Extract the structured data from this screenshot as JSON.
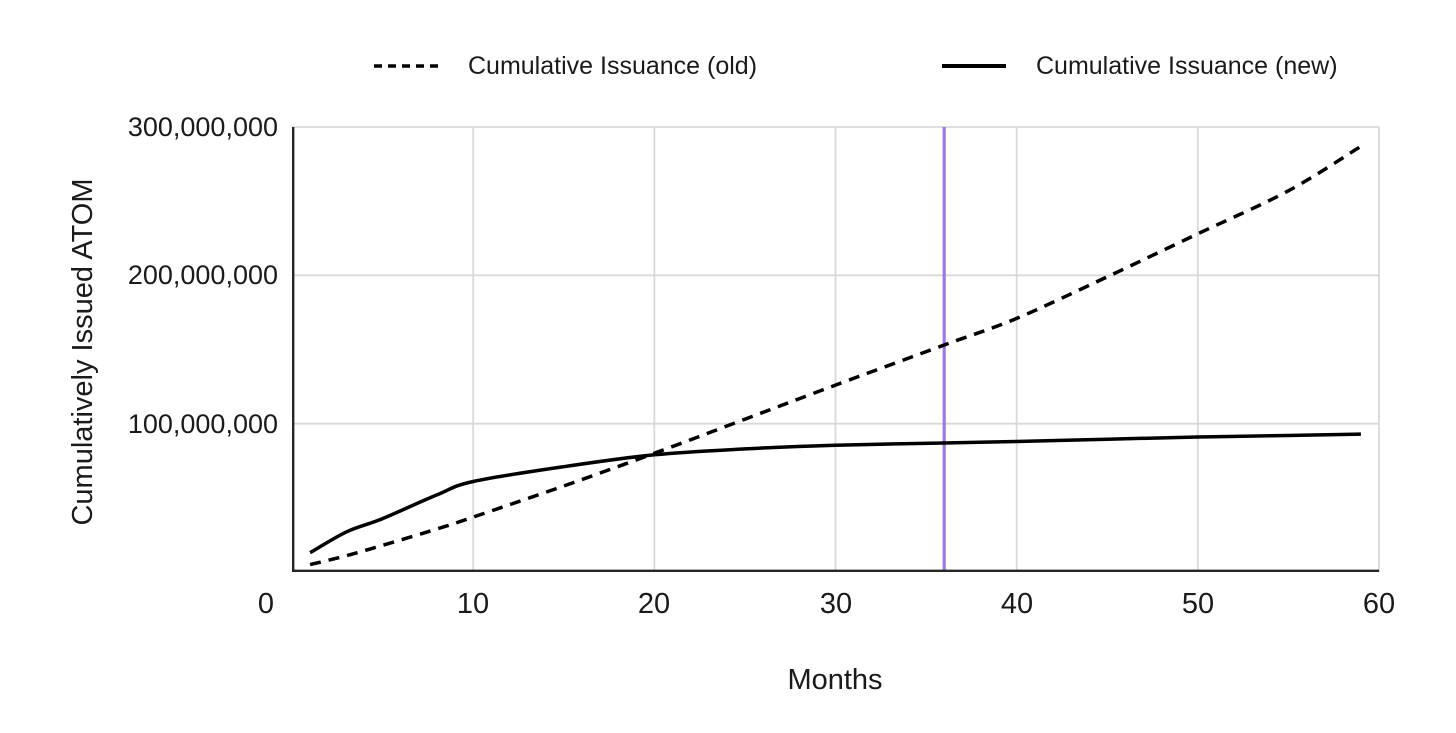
{
  "legend": {
    "items": [
      {
        "label": "Cumulative Issuance (old)",
        "line_style": "dashed",
        "color": "#000000"
      },
      {
        "label": "Cumulative Issuance (new)",
        "line_style": "solid",
        "color": "#000000"
      }
    ]
  },
  "axes": {
    "x_title": "Months",
    "y_title": "Cumulatively Issued ATOM",
    "x_tick_labels": [
      "0",
      "10",
      "20",
      "30",
      "40",
      "50",
      "60"
    ],
    "y_tick_labels": [
      "100,000,000",
      "200,000,000",
      "300,000,000"
    ]
  },
  "chart_data": {
    "type": "line",
    "title": "",
    "xlabel": "Months",
    "ylabel": "Cumulatively Issued ATOM",
    "xlim": [
      0,
      60
    ],
    "ylim": [
      0,
      300000000
    ],
    "x_ticks": [
      0,
      10,
      20,
      30,
      40,
      50,
      60
    ],
    "y_ticks": [
      100000000,
      200000000,
      300000000
    ],
    "grid": true,
    "grid_color": "#d9d9d9",
    "axis_color": "#262626",
    "background": "#ffffff",
    "legend_position": "top-center",
    "x": [
      1,
      3,
      5,
      8,
      10,
      15,
      20,
      25,
      30,
      36,
      40,
      45,
      50,
      55,
      59
    ],
    "series": [
      {
        "name": "Cumulative Issuance (old)",
        "style": "dashed",
        "color": "#000000",
        "values": [
          5000000,
          11000000,
          18000000,
          29000000,
          37000000,
          58000000,
          80000000,
          103000000,
          126000000,
          153000000,
          171000000,
          199000000,
          228000000,
          257000000,
          287000000
        ]
      },
      {
        "name": "Cumulative Issuance (new)",
        "style": "solid",
        "color": "#000000",
        "values": [
          13000000,
          27000000,
          36000000,
          52000000,
          61000000,
          71000000,
          79000000,
          83000000,
          85500000,
          87000000,
          88000000,
          89500000,
          91000000,
          92000000,
          93000000
        ]
      }
    ],
    "vline": {
      "x": 36,
      "color": "#9a7ce4"
    }
  }
}
